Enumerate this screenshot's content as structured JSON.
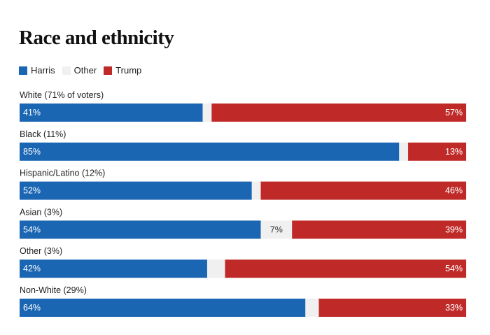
{
  "chart_data": {
    "type": "bar",
    "orientation": "horizontal-stacked-100",
    "title": "Race and ethnicity",
    "legend": [
      {
        "name": "Harris",
        "color": "#1a66b3"
      },
      {
        "name": "Other",
        "color": "#f0f0f0"
      },
      {
        "name": "Trump",
        "color": "#bf2a28"
      }
    ],
    "categories": [
      "White (71% of voters)",
      "Black (11%)",
      "Hispanic/Latino (12%)",
      "Asian (3%)",
      "Other (3%)",
      "Non-White (29%)"
    ],
    "series": [
      {
        "name": "Harris",
        "values": [
          41,
          85,
          52,
          54,
          42,
          64
        ],
        "labels": [
          "41%",
          "85%",
          "52%",
          "54%",
          "42%",
          "64%"
        ]
      },
      {
        "name": "Other",
        "values": [
          2,
          2,
          2,
          7,
          4,
          3
        ],
        "labels": [
          "",
          "",
          "",
          "7%",
          "",
          ""
        ]
      },
      {
        "name": "Trump",
        "values": [
          57,
          13,
          46,
          39,
          54,
          33
        ],
        "labels": [
          "57%",
          "13%",
          "46%",
          "39%",
          "54%",
          "33%"
        ]
      }
    ],
    "xlim": [
      0,
      100
    ],
    "legend_position": "top-left",
    "grid": false
  }
}
